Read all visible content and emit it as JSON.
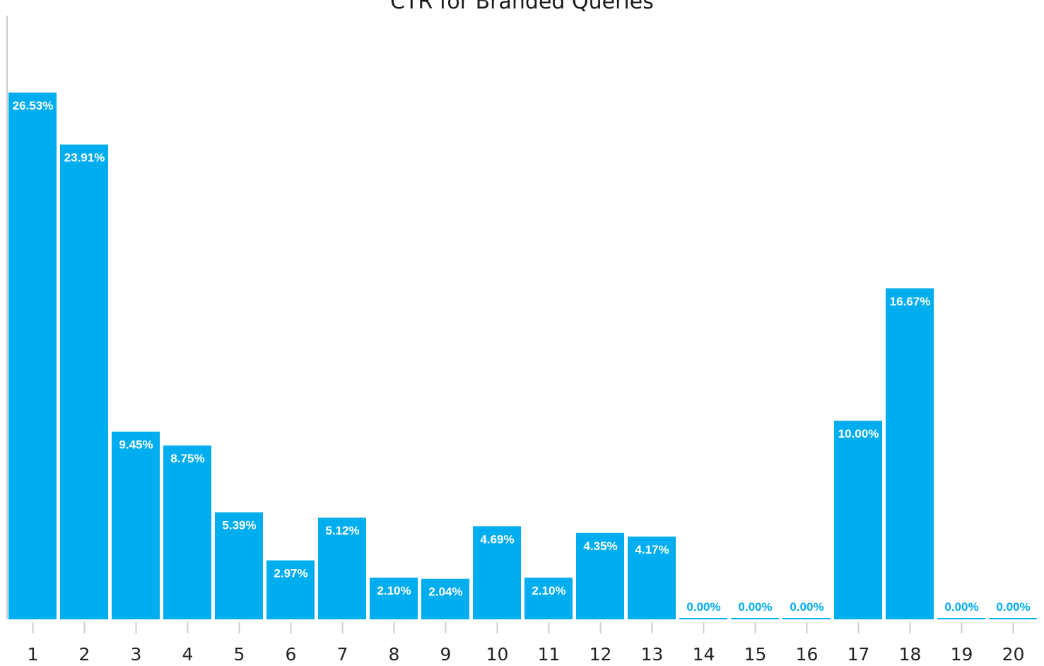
{
  "chart_data": {
    "type": "bar",
    "title": "CTR for Branded Queries",
    "xlabel": "",
    "ylabel": "",
    "categories": [
      "1",
      "2",
      "3",
      "4",
      "5",
      "6",
      "7",
      "8",
      "9",
      "10",
      "11",
      "12",
      "13",
      "14",
      "15",
      "16",
      "17",
      "18",
      "19",
      "20"
    ],
    "values": [
      26.53,
      23.91,
      9.45,
      8.75,
      5.39,
      2.97,
      5.12,
      2.1,
      2.04,
      4.69,
      2.1,
      4.35,
      4.17,
      0.0,
      0.0,
      0.0,
      10.0,
      16.67,
      0.0,
      0.0
    ],
    "data_labels": [
      "26.53%",
      "23.91%",
      "9.45%",
      "8.75%",
      "5.39%",
      "2.97%",
      "5.12%",
      "2.10%",
      "2.04%",
      "4.69%",
      "2.10%",
      "4.35%",
      "4.17%",
      "0.00%",
      "0.00%",
      "0.00%",
      "10.00%",
      "16.67%",
      "0.00%",
      "0.00%"
    ],
    "ylim": [
      0,
      30.3
    ],
    "grid": false,
    "legend": "none",
    "colors": {
      "bar": "#00adef",
      "label_inside": "#ffffff",
      "label_outside": "#00adef",
      "axis": "#cccccc"
    }
  }
}
